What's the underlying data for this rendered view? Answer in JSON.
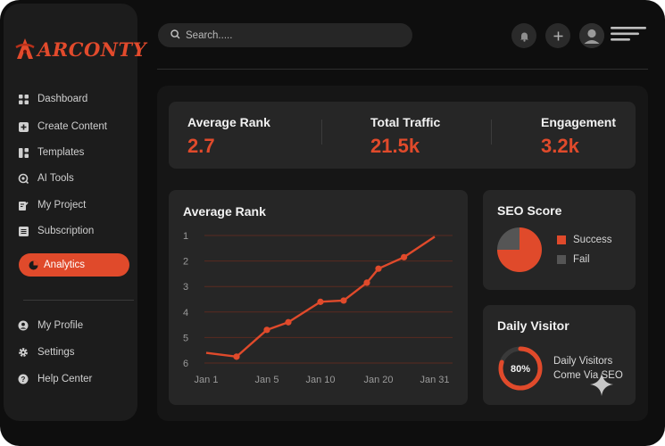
{
  "app": {
    "logo_text": "ARCONTY"
  },
  "sidebar": {
    "items": [
      {
        "label": "Dashboard",
        "icon": "grid-icon"
      },
      {
        "label": "Create Content",
        "icon": "plus-square-icon"
      },
      {
        "label": "Templates",
        "icon": "layout-icon"
      },
      {
        "label": "AI Tools",
        "icon": "ai-icon"
      },
      {
        "label": "My Project",
        "icon": "edit-doc-icon"
      },
      {
        "label": "Subscription",
        "icon": "list-icon"
      },
      {
        "label": "Analytics",
        "icon": "pie-icon",
        "active": true
      }
    ],
    "bottom_items": [
      {
        "label": "My Profile",
        "icon": "user-icon"
      },
      {
        "label": "Settings",
        "icon": "gear-icon"
      },
      {
        "label": "Help Center",
        "icon": "help-icon"
      }
    ]
  },
  "search": {
    "placeholder": "Search....."
  },
  "stats": [
    {
      "label": "Average Rank",
      "value": "2.7"
    },
    {
      "label": "Total Traffic",
      "value": "21.5k"
    },
    {
      "label": "Engagement",
      "value": "3.2k"
    }
  ],
  "chart_data": {
    "type": "line",
    "title": "Average Rank",
    "x_ticks": [
      "Jan 1",
      "Jan 5",
      "Jan 10",
      "Jan 20",
      "Jan 31"
    ],
    "y_ticks": [
      "1",
      "2",
      "3",
      "4",
      "5",
      "6"
    ],
    "ylim": [
      1,
      6
    ],
    "y_inverted": true,
    "grid": true,
    "series": [
      {
        "x": [
          "Jan 1",
          "Jan 3",
          "Jan 5",
          "Jan 7",
          "Jan 10",
          "Jan 14",
          "Jan 18",
          "Jan 20",
          "Jan 25",
          "Jan 31"
        ],
        "y": [
          5.6,
          5.75,
          4.7,
          4.4,
          3.6,
          3.55,
          2.85,
          2.3,
          1.85,
          1.05
        ]
      }
    ],
    "color": "#e04a2b"
  },
  "seo": {
    "title": "SEO Score",
    "chart_data": {
      "type": "pie",
      "slices": [
        {
          "label": "Success",
          "value": 75,
          "color": "#e04a2b"
        },
        {
          "label": "Fail",
          "value": 25,
          "color": "#555555"
        }
      ]
    }
  },
  "visitor": {
    "title": "Daily Visitor",
    "percent_label": "80%",
    "progress": 0.8,
    "line1": "Daily Visitors",
    "line2": "Come Via SEO"
  },
  "colors": {
    "accent": "#e04a2b",
    "background": "#0e0e0e",
    "card": "#262626"
  }
}
